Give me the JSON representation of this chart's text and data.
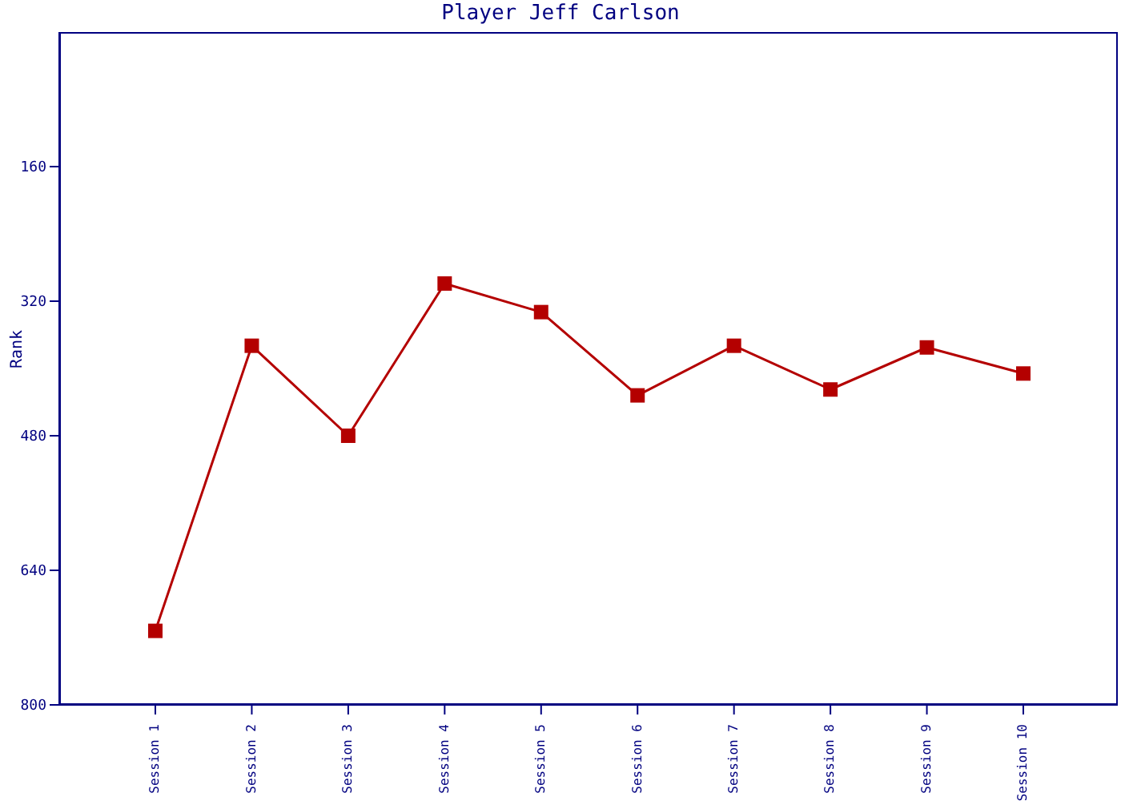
{
  "chart_data": {
    "type": "line",
    "title": "Player Jeff Carlson",
    "ylabel": "Rank",
    "categories": [
      "Session 1",
      "Session 2",
      "Session 3",
      "Session 4",
      "Session 5",
      "Session 6",
      "Session 7",
      "Session 8",
      "Session 9",
      "Session 10"
    ],
    "series": [
      {
        "color": "#b40000",
        "values": [
          712,
          373,
          480,
          299,
          333,
          432,
          373,
          425,
          375,
          406
        ]
      }
    ],
    "ylim": [
      800,
      0
    ],
    "yticks": [
      160,
      320,
      480,
      640,
      800
    ],
    "grid": false,
    "legend": false,
    "marker": "square",
    "line_style": "solid"
  }
}
